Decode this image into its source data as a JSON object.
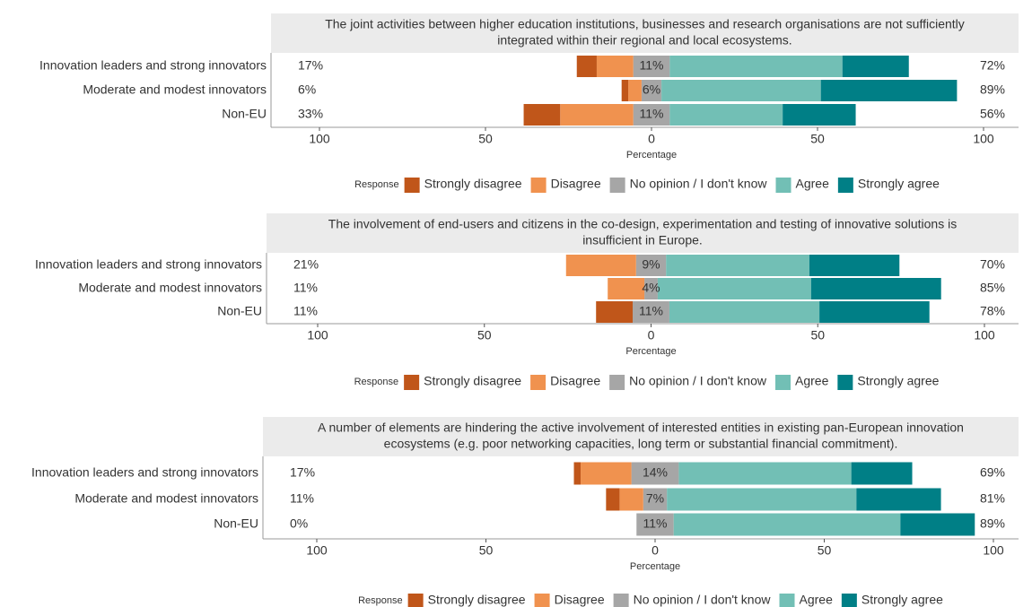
{
  "chart_data": [
    {
      "type": "diverging_stacked_bar",
      "title": [
        "The joint activities between higher education institutions, businesses and research organisations are not sufficiently",
        "integrated within their regional and local ecosystems."
      ],
      "categories": [
        "Innovation leaders and strong innovators",
        "Moderate and modest innovators",
        "Non-EU"
      ],
      "series": [
        {
          "name": "Strongly disagree",
          "color": "#c0561a",
          "values": [
            6,
            2,
            11
          ]
        },
        {
          "name": "Disagree",
          "color": "#f0924f",
          "values": [
            11,
            4,
            22
          ]
        },
        {
          "name": "No opinion / I don't know",
          "color": "#a6a6a6",
          "values": [
            11,
            6,
            11
          ],
          "value_labels": [
            "11%",
            "6%",
            "11%"
          ]
        },
        {
          "name": "Agree",
          "color": "#72bfb5",
          "values": [
            52,
            48,
            34
          ]
        },
        {
          "name": "Strongly agree",
          "color": "#007f86",
          "values": [
            20,
            41,
            22
          ]
        }
      ],
      "low_totals": [
        17,
        6,
        33
      ],
      "low_total_labels": [
        "17%",
        "6%",
        "33%"
      ],
      "high_totals": [
        72,
        89,
        56
      ],
      "high_total_labels": [
        "72%",
        "89%",
        "56%"
      ],
      "xlim": [
        -100,
        100
      ],
      "xticks": [
        {
          "value": -100,
          "label": "100"
        },
        {
          "value": -50,
          "label": "50"
        },
        0,
        50,
        100
      ],
      "xlabel": "Percentage",
      "legend_title": "Response"
    },
    {
      "type": "diverging_stacked_bar",
      "title": [
        "The involvement of end-users and citizens in the co-design, experimentation and testing of innovative solutions is",
        "insufficient in Europe."
      ],
      "categories": [
        "Innovation leaders and strong innovators",
        "Moderate and modest innovators",
        "Non-EU"
      ],
      "series": [
        {
          "name": "Strongly disagree",
          "color": "#c0561a",
          "values": [
            0,
            0,
            11
          ]
        },
        {
          "name": "Disagree",
          "color": "#f0924f",
          "values": [
            21,
            11,
            0
          ]
        },
        {
          "name": "No opinion / I don't know",
          "color": "#a6a6a6",
          "values": [
            9,
            4,
            11
          ],
          "value_labels": [
            "9%",
            "4%",
            "11%"
          ]
        },
        {
          "name": "Agree",
          "color": "#72bfb5",
          "values": [
            43,
            46,
            45
          ]
        },
        {
          "name": "Strongly agree",
          "color": "#007f86",
          "values": [
            27,
            39,
            33
          ]
        }
      ],
      "low_totals": [
        21,
        11,
        11
      ],
      "low_total_labels": [
        "21%",
        "11%",
        "11%"
      ],
      "high_totals": [
        70,
        85,
        78
      ],
      "high_total_labels": [
        "70%",
        "85%",
        "78%"
      ],
      "xlim": [
        -100,
        100
      ],
      "xticks": [
        {
          "value": -100,
          "label": "100"
        },
        {
          "value": -50,
          "label": "50"
        },
        0,
        50,
        100
      ],
      "xlabel": "Percentage",
      "legend_title": "Response"
    },
    {
      "type": "diverging_stacked_bar",
      "title": [
        "A number of elements are hindering the active involvement of interested entities in existing pan-European innovation",
        "ecosystems (e.g. poor networking capacities, long term or substantial financial commitment)."
      ],
      "categories": [
        "Innovation leaders and strong innovators",
        "Moderate and modest innovators",
        "Non-EU"
      ],
      "series": [
        {
          "name": "Strongly disagree",
          "color": "#c0561a",
          "values": [
            2,
            4,
            0
          ]
        },
        {
          "name": "Disagree",
          "color": "#f0924f",
          "values": [
            15,
            7,
            0
          ]
        },
        {
          "name": "No opinion / I don't know",
          "color": "#a6a6a6",
          "values": [
            14,
            7,
            11
          ],
          "value_labels": [
            "14%",
            "7%",
            "11%"
          ]
        },
        {
          "name": "Agree",
          "color": "#72bfb5",
          "values": [
            51,
            56,
            67
          ]
        },
        {
          "name": "Strongly agree",
          "color": "#007f86",
          "values": [
            18,
            25,
            22
          ]
        }
      ],
      "low_totals": [
        17,
        11,
        0
      ],
      "low_total_labels": [
        "17%",
        "11%",
        "0%"
      ],
      "high_totals": [
        69,
        81,
        89
      ],
      "high_total_labels": [
        "69%",
        "81%",
        "89%"
      ],
      "xlim": [
        -100,
        100
      ],
      "xticks": [
        {
          "value": -100,
          "label": "100"
        },
        {
          "value": -50,
          "label": "50"
        },
        0,
        50,
        100
      ],
      "xlabel": "Percentage",
      "legend_title": "Response"
    }
  ]
}
